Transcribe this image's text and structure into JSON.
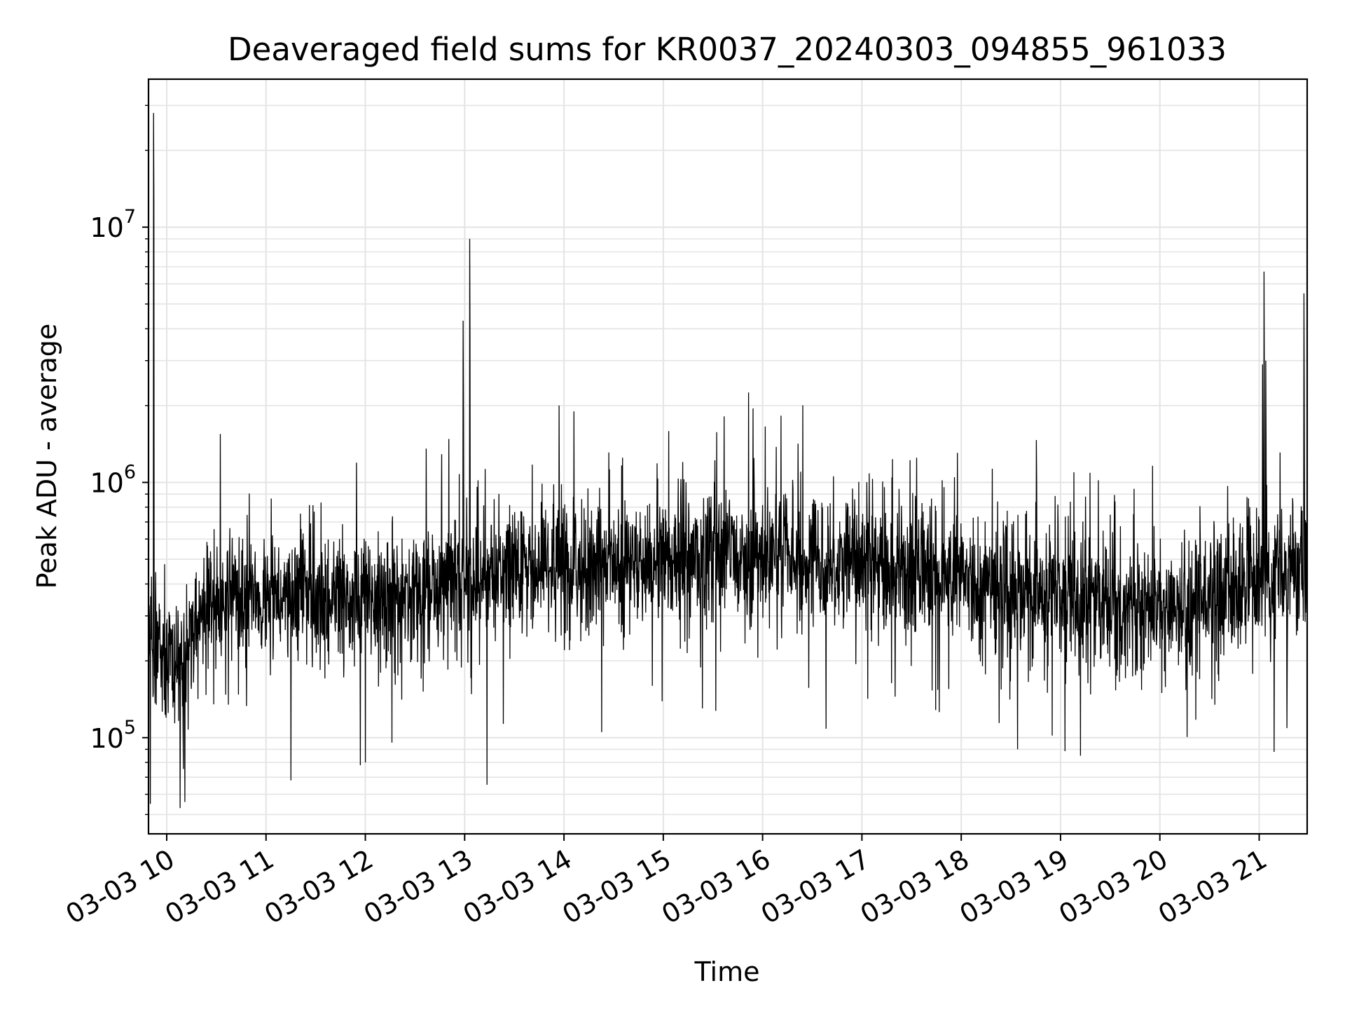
{
  "chart_data": {
    "type": "line",
    "title": "Deaveraged field sums for KR0037_20240303_094855_961033",
    "xlabel": "Time",
    "ylabel": "Peak ADU - average",
    "yscale": "log",
    "grid": true,
    "legend": "none",
    "line_color": "#000000",
    "x_range": [
      "2024-03-03 09:49",
      "2024-03-03 21:29"
    ],
    "ylim": [
      42000,
      38000000
    ],
    "x_tick_labels": [
      "03-03 10",
      "03-03 11",
      "03-03 12",
      "03-03 13",
      "03-03 14",
      "03-03 15",
      "03-03 16",
      "03-03 17",
      "03-03 18",
      "03-03 19",
      "03-03 20",
      "03-03 21"
    ],
    "x_tick_times": [
      "2024-03-03 10:00",
      "2024-03-03 11:00",
      "2024-03-03 12:00",
      "2024-03-03 13:00",
      "2024-03-03 14:00",
      "2024-03-03 15:00",
      "2024-03-03 16:00",
      "2024-03-03 17:00",
      "2024-03-03 18:00",
      "2024-03-03 19:00",
      "2024-03-03 20:00",
      "2024-03-03 21:00"
    ],
    "y_ticks": [
      {
        "value": 100000,
        "base": "10",
        "exp": "5"
      },
      {
        "value": 1000000,
        "base": "10",
        "exp": "6"
      },
      {
        "value": 10000000,
        "base": "10",
        "exp": "7"
      }
    ],
    "series": [
      {
        "baseline": [
          {
            "time": "2024-03-03 09:49",
            "value": 240000
          },
          {
            "time": "2024-03-03 10:00",
            "value": 200000
          },
          {
            "time": "2024-03-03 10:10",
            "value": 190000
          },
          {
            "time": "2024-03-03 10:20",
            "value": 330000
          },
          {
            "time": "2024-03-03 10:40",
            "value": 340000
          },
          {
            "time": "2024-03-03 11:00",
            "value": 350000
          },
          {
            "time": "2024-03-03 12:00",
            "value": 340000
          },
          {
            "time": "2024-03-03 13:00",
            "value": 400000
          },
          {
            "time": "2024-03-03 14:00",
            "value": 450000
          },
          {
            "time": "2024-03-03 15:00",
            "value": 490000
          },
          {
            "time": "2024-03-03 16:00",
            "value": 510000
          },
          {
            "time": "2024-03-03 17:00",
            "value": 480000
          },
          {
            "time": "2024-03-03 18:00",
            "value": 420000
          },
          {
            "time": "2024-03-03 19:00",
            "value": 350000
          },
          {
            "time": "2024-03-03 20:00",
            "value": 310000
          },
          {
            "time": "2024-03-03 20:50",
            "value": 380000
          },
          {
            "time": "2024-03-03 21:29",
            "value": 470000
          }
        ],
        "peaks": [
          {
            "time": "2024-03-03 09:52",
            "value": 28000000
          },
          {
            "time": "2024-03-03 12:59",
            "value": 4300000
          },
          {
            "time": "2024-03-03 13:03",
            "value": 9000000
          },
          {
            "time": "2024-03-03 13:57",
            "value": 2000000
          },
          {
            "time": "2024-03-03 17:33",
            "value": 1250000
          },
          {
            "time": "2024-03-03 21:02",
            "value": 2900000
          },
          {
            "time": "2024-03-03 21:03",
            "value": 6700000
          },
          {
            "time": "2024-03-03 21:04",
            "value": 3000000
          },
          {
            "time": "2024-03-03 21:27",
            "value": 5500000
          }
        ],
        "dips": [
          {
            "time": "2024-03-03 09:50",
            "value": 55000
          },
          {
            "time": "2024-03-03 10:08",
            "value": 53000
          },
          {
            "time": "2024-03-03 10:11",
            "value": 56000
          },
          {
            "time": "2024-03-03 11:15",
            "value": 68000
          },
          {
            "time": "2024-03-03 11:57",
            "value": 78000
          },
          {
            "time": "2024-03-03 12:00",
            "value": 80000
          },
          {
            "time": "2024-03-03 18:34",
            "value": 90000
          },
          {
            "time": "2024-03-03 19:12",
            "value": 85000
          },
          {
            "time": "2024-03-03 21:09",
            "value": 88000
          }
        ]
      }
    ]
  }
}
